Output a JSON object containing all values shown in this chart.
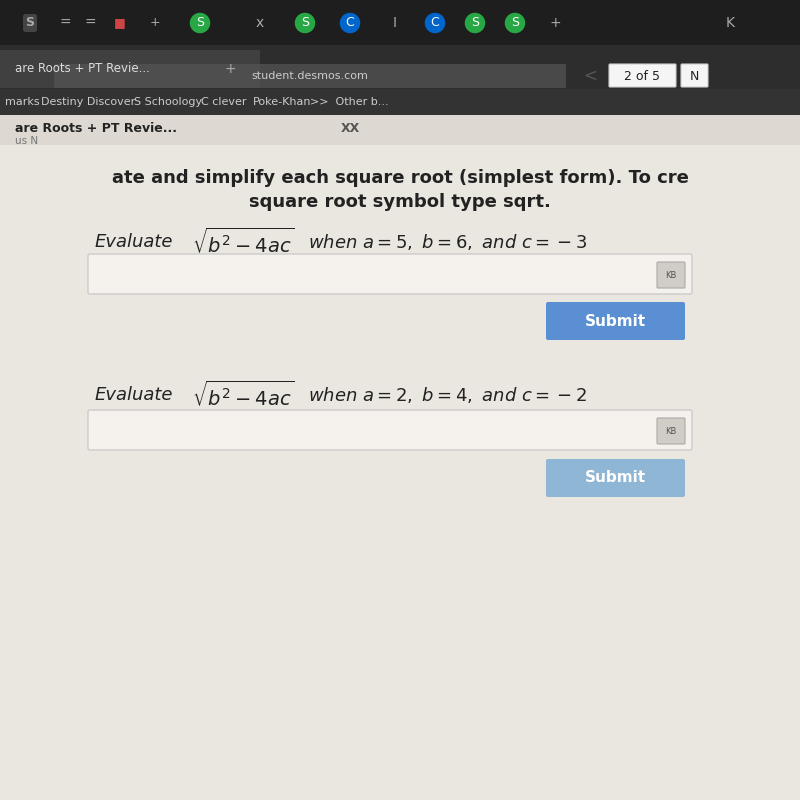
{
  "bg_color": "#d0c8b8",
  "content_bg": "#eae6e0",
  "white_bg": "#f5f2ee",
  "title_line1": "ate and simplify each square root (simplest form). To cre",
  "title_line2": "square root symbol type sqrt.",
  "problem1_cond": "when $a = 5,\\ b = 6,$ and $c = -3$",
  "problem2_cond": "when $a = 2,\\ b = 4,$ and $c = -2$",
  "submit_color": "#5b8fd4",
  "submit_text_color": "#ffffff",
  "tab_text": "are Roots + PT Revie...",
  "url_text": "student.desmos.com",
  "page_indicator": "2 of 5",
  "content_text_color": "#222222"
}
